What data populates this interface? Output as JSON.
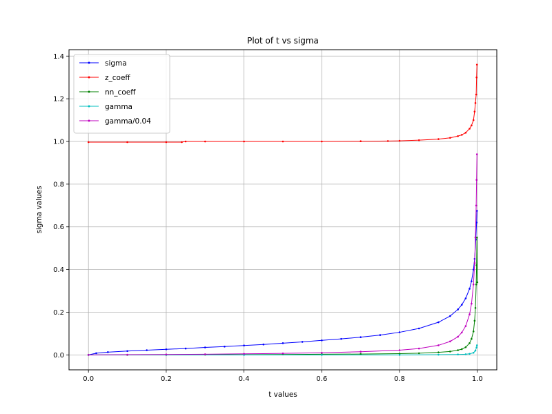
{
  "chart_data": {
    "type": "line",
    "title": "Plot of t vs sigma",
    "xlabel": "t values",
    "ylabel": "sigma values",
    "xlim": [
      -0.05,
      1.05
    ],
    "ylim": [
      -0.07,
      1.43
    ],
    "xticks": [
      0.0,
      0.2,
      0.4,
      0.6,
      0.8,
      1.0
    ],
    "xtick_labels": [
      "0.0",
      "0.2",
      "0.4",
      "0.6",
      "0.8",
      "1.0"
    ],
    "yticks": [
      0.0,
      0.2,
      0.4,
      0.6,
      0.8,
      1.0,
      1.2,
      1.4
    ],
    "ytick_labels": [
      "0.0",
      "0.2",
      "0.4",
      "0.6",
      "0.8",
      "1.0",
      "1.2",
      "1.4"
    ],
    "grid": true,
    "legend_position": "upper-left",
    "marker": "small-dot",
    "series": [
      {
        "name": "sigma",
        "color": "#0000ff",
        "x": [
          0.0,
          0.02,
          0.05,
          0.1,
          0.15,
          0.2,
          0.25,
          0.3,
          0.35,
          0.4,
          0.45,
          0.5,
          0.55,
          0.6,
          0.65,
          0.7,
          0.75,
          0.8,
          0.85,
          0.9,
          0.93,
          0.95,
          0.96,
          0.97,
          0.98,
          0.985,
          0.99,
          0.993,
          0.996,
          0.998,
          0.999
        ],
        "y": [
          0.0,
          0.008,
          0.013,
          0.018,
          0.022,
          0.026,
          0.03,
          0.035,
          0.039,
          0.044,
          0.049,
          0.055,
          0.061,
          0.068,
          0.075,
          0.083,
          0.093,
          0.106,
          0.124,
          0.153,
          0.182,
          0.213,
          0.235,
          0.265,
          0.31,
          0.345,
          0.4,
          0.45,
          0.54,
          0.62,
          0.675
        ]
      },
      {
        "name": "z_coeff",
        "color": "#ff0000",
        "x": [
          0.0,
          0.1,
          0.2,
          0.24,
          0.25,
          0.3,
          0.4,
          0.5,
          0.6,
          0.7,
          0.77,
          0.8,
          0.85,
          0.9,
          0.93,
          0.95,
          0.96,
          0.97,
          0.98,
          0.985,
          0.99,
          0.993,
          0.995,
          0.997,
          0.998,
          0.999
        ],
        "y": [
          0.997,
          0.997,
          0.997,
          0.997,
          1.0,
          1.0,
          1.0,
          1.0,
          1.0,
          1.001,
          1.002,
          1.003,
          1.006,
          1.011,
          1.017,
          1.025,
          1.031,
          1.041,
          1.06,
          1.075,
          1.1,
          1.14,
          1.18,
          1.22,
          1.3,
          1.36
        ]
      },
      {
        "name": "nn_coeff",
        "color": "#008000",
        "x": [
          0.0,
          0.1,
          0.2,
          0.3,
          0.4,
          0.5,
          0.6,
          0.7,
          0.8,
          0.85,
          0.9,
          0.93,
          0.95,
          0.96,
          0.97,
          0.98,
          0.985,
          0.99,
          0.993,
          0.995,
          0.997,
          0.998,
          0.999,
          1.0
        ],
        "y": [
          0.0,
          0.0,
          0.0,
          0.001,
          0.001,
          0.002,
          0.003,
          0.004,
          0.006,
          0.008,
          0.012,
          0.016,
          0.022,
          0.027,
          0.036,
          0.055,
          0.075,
          0.11,
          0.16,
          0.22,
          0.33,
          0.42,
          0.55,
          0.34
        ]
      },
      {
        "name": "gamma",
        "color": "#00bfbf",
        "x": [
          0.0,
          0.2,
          0.4,
          0.6,
          0.8,
          0.9,
          0.95,
          0.97,
          0.98,
          0.99,
          0.995,
          0.998,
          0.999
        ],
        "y": [
          0.0,
          0.0,
          0.0,
          0.0,
          0.0,
          0.001,
          0.002,
          0.003,
          0.005,
          0.01,
          0.02,
          0.035,
          0.045
        ]
      },
      {
        "name": "gamma/0.04",
        "color": "#bf00bf",
        "x": [
          0.0,
          0.1,
          0.2,
          0.3,
          0.4,
          0.5,
          0.6,
          0.7,
          0.8,
          0.85,
          0.9,
          0.93,
          0.95,
          0.96,
          0.97,
          0.98,
          0.985,
          0.99,
          0.993,
          0.995,
          0.997,
          0.998,
          0.999
        ],
        "y": [
          0.0,
          0.001,
          0.002,
          0.003,
          0.005,
          0.007,
          0.01,
          0.015,
          0.022,
          0.03,
          0.045,
          0.063,
          0.085,
          0.105,
          0.135,
          0.19,
          0.24,
          0.33,
          0.43,
          0.55,
          0.7,
          0.82,
          0.94
        ]
      }
    ]
  }
}
